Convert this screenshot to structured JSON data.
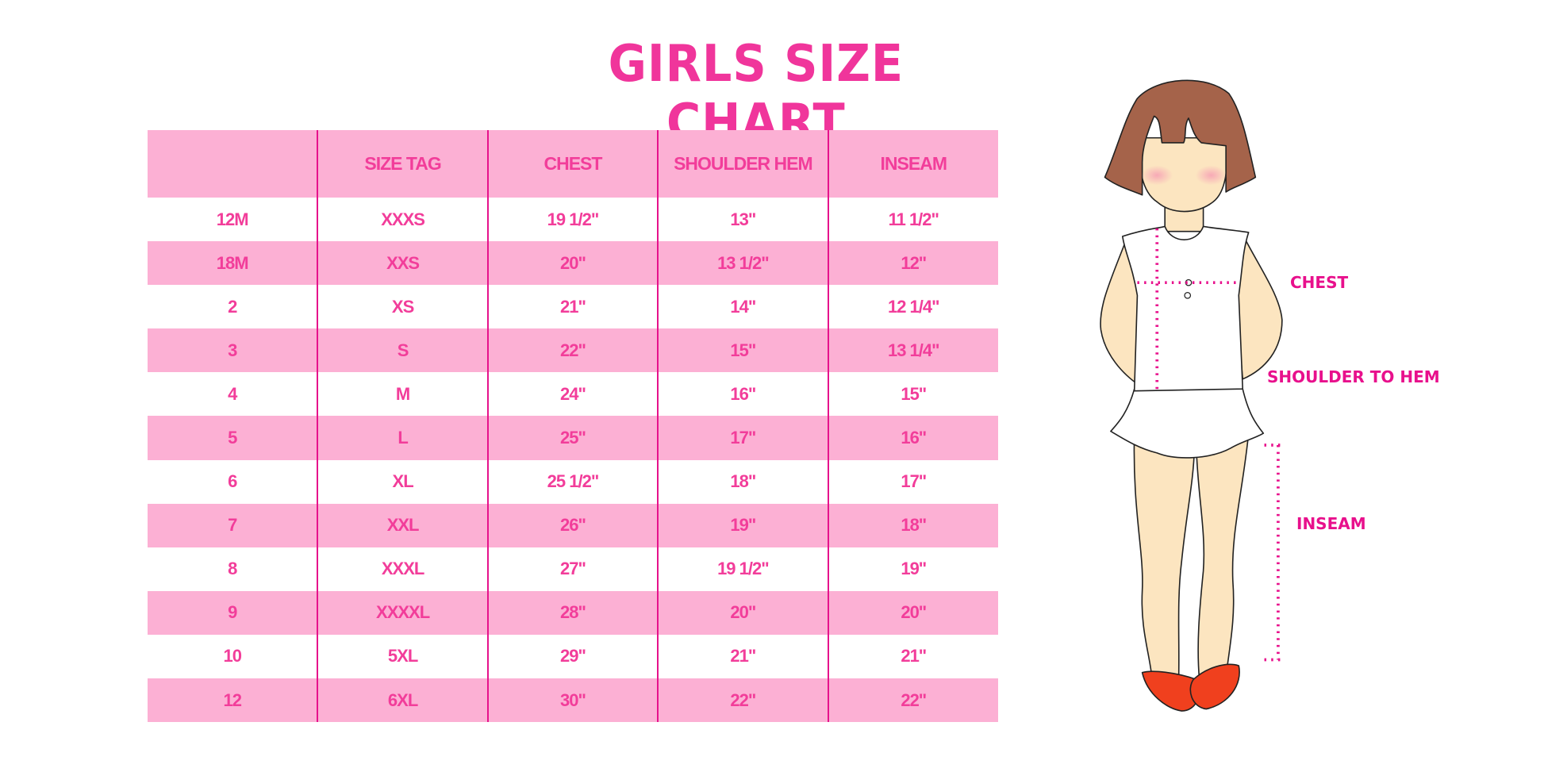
{
  "title": "GIRLS SIZE CHART",
  "colors": {
    "title": "#f0359b",
    "stripe": "#fcb0d4",
    "divider": "#e6128c",
    "label": "#e8108c"
  },
  "table": {
    "headers": [
      "",
      "SIZE TAG",
      "CHEST",
      "SHOULDER HEM",
      "INSEAM"
    ],
    "rows": [
      [
        "12M",
        "XXXS",
        "19 1/2\"",
        "13\"",
        "11 1/2\""
      ],
      [
        "18M",
        "XXS",
        "20\"",
        "13 1/2\"",
        "12\""
      ],
      [
        "2",
        "XS",
        "21\"",
        "14\"",
        "12 1/4\""
      ],
      [
        "3",
        "S",
        "22\"",
        "15\"",
        "13 1/4\""
      ],
      [
        "4",
        "M",
        "24\"",
        "16\"",
        "15\""
      ],
      [
        "5",
        "L",
        "25\"",
        "17\"",
        "16\""
      ],
      [
        "6",
        "XL",
        "25 1/2\"",
        "18\"",
        "17\""
      ],
      [
        "7",
        "XXL",
        "26\"",
        "19\"",
        "18\""
      ],
      [
        "8",
        "XXXL",
        "27\"",
        "19 1/2\"",
        "19\""
      ],
      [
        "9",
        "XXXXL",
        "28\"",
        "20\"",
        "20\""
      ],
      [
        "10",
        "5XL",
        "29\"",
        "21\"",
        "21\""
      ],
      [
        "12",
        "6XL",
        "30\"",
        "22\"",
        "22\""
      ]
    ]
  },
  "figure": {
    "labels": {
      "chest": "CHEST",
      "shoulder_to_hem": "SHOULDER TO HEM",
      "inseam": "INSEAM"
    }
  }
}
